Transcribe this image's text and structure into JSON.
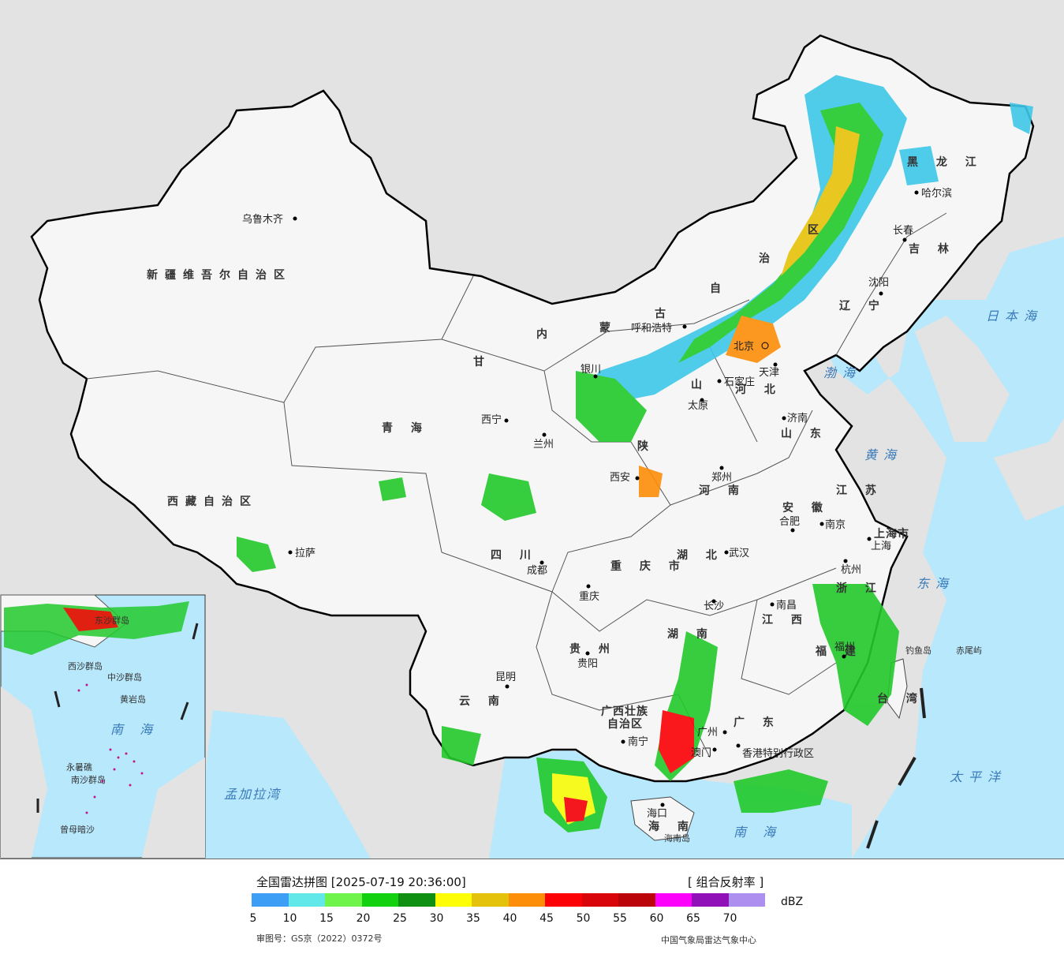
{
  "map": {
    "regions": [
      {
        "id": "xinjiang",
        "text": "新疆维吾尔自治区"
      },
      {
        "id": "xizang",
        "text": "西藏自治区"
      },
      {
        "id": "qinghai",
        "text": "青 海"
      },
      {
        "id": "gansu",
        "text": "甘"
      },
      {
        "id": "sichuan",
        "text": "四 川"
      },
      {
        "id": "yunnan",
        "text": "云 南"
      },
      {
        "id": "guizhou",
        "text": "贵 州"
      },
      {
        "id": "guangxi1",
        "text": "广西壮族"
      },
      {
        "id": "guangxi2",
        "text": "自治区"
      },
      {
        "id": "guangdong",
        "text": "广 东"
      },
      {
        "id": "hunan",
        "text": "湖 南"
      },
      {
        "id": "hubei",
        "text": "湖 北"
      },
      {
        "id": "henan",
        "text": "河 南"
      },
      {
        "id": "shaanxi",
        "text": "陕"
      },
      {
        "id": "shanxi",
        "text": "山"
      },
      {
        "id": "neimeng1",
        "text": "内"
      },
      {
        "id": "neimeng2",
        "text": "蒙"
      },
      {
        "id": "neimeng3",
        "text": "古"
      },
      {
        "id": "neimeng4",
        "text": "自"
      },
      {
        "id": "neimeng5",
        "text": "治"
      },
      {
        "id": "neimeng6",
        "text": "区"
      },
      {
        "id": "heilongjiang",
        "text": "黑 龙 江"
      },
      {
        "id": "jilin",
        "text": "吉 林"
      },
      {
        "id": "liaoning",
        "text": "辽 宁"
      },
      {
        "id": "hebei",
        "text": "河 北"
      },
      {
        "id": "shandong",
        "text": "山 东"
      },
      {
        "id": "jiangsu",
        "text": "江 苏"
      },
      {
        "id": "anhui",
        "text": "安 徽"
      },
      {
        "id": "zhejiang",
        "text": "浙 江"
      },
      {
        "id": "jiangxi",
        "text": "江 西"
      },
      {
        "id": "fujian",
        "text": "福 建"
      },
      {
        "id": "taiwan",
        "text": "台 湾"
      },
      {
        "id": "chongqing",
        "text": "重 庆 市"
      },
      {
        "id": "shanghai",
        "text": "上海市"
      },
      {
        "id": "hainan",
        "text": "海 南"
      }
    ],
    "cities": [
      {
        "id": "urumqi",
        "text": "乌鲁木齐"
      },
      {
        "id": "lhasa",
        "text": "拉萨"
      },
      {
        "id": "xining",
        "text": "西宁"
      },
      {
        "id": "lanzhou",
        "text": "兰州"
      },
      {
        "id": "yinchuan",
        "text": "银川"
      },
      {
        "id": "hohhot",
        "text": "呼和浩特"
      },
      {
        "id": "beijing",
        "text": "北京"
      },
      {
        "id": "tianjin",
        "text": "天津"
      },
      {
        "id": "shijiazhuang",
        "text": "石家庄"
      },
      {
        "id": "taiyuan",
        "text": "太原"
      },
      {
        "id": "jinan",
        "text": "济南"
      },
      {
        "id": "zhengzhou",
        "text": "郑州"
      },
      {
        "id": "xian",
        "text": "西安"
      },
      {
        "id": "chengdu",
        "text": "成都"
      },
      {
        "id": "chongqing_c",
        "text": "重庆"
      },
      {
        "id": "guiyang",
        "text": "贵阳"
      },
      {
        "id": "kunming",
        "text": "昆明"
      },
      {
        "id": "nanning",
        "text": "南宁"
      },
      {
        "id": "guangzhou",
        "text": "广州"
      },
      {
        "id": "haikou",
        "text": "海口"
      },
      {
        "id": "changsha",
        "text": "长沙"
      },
      {
        "id": "wuhan",
        "text": "武汉"
      },
      {
        "id": "nanchang",
        "text": "南昌"
      },
      {
        "id": "fuzhou",
        "text": "福州"
      },
      {
        "id": "hangzhou",
        "text": "杭州"
      },
      {
        "id": "shanghai_c",
        "text": "上海"
      },
      {
        "id": "nanjing",
        "text": "南京"
      },
      {
        "id": "hefei",
        "text": "合肥"
      },
      {
        "id": "shenyang",
        "text": "沈阳"
      },
      {
        "id": "changchun",
        "text": "长春"
      },
      {
        "id": "harbin",
        "text": "哈尔滨"
      },
      {
        "id": "hongkong",
        "text": "香港特别行政区"
      },
      {
        "id": "macao",
        "text": "澳门"
      }
    ],
    "seas": [
      {
        "id": "japan_sea",
        "text": "日本海"
      },
      {
        "id": "bohai",
        "text": "渤海"
      },
      {
        "id": "yellow_sea",
        "text": "黄海"
      },
      {
        "id": "east_sea",
        "text": "东海"
      },
      {
        "id": "pacific",
        "text": "太平洋"
      },
      {
        "id": "south_sea",
        "text": "南 海"
      },
      {
        "id": "bengal",
        "text": "孟加拉湾"
      }
    ],
    "islands": [
      {
        "id": "diaoyu",
        "text": "钓鱼岛"
      },
      {
        "id": "chiwei",
        "text": "赤尾屿"
      },
      {
        "id": "hainan_island",
        "text": "海南岛"
      }
    ],
    "inset": {
      "sea": "南 海",
      "labels": [
        "东沙群岛",
        "西沙群岛",
        "中沙群岛",
        "黄岩岛",
        "永暑礁",
        "南沙群岛",
        "曾母暗沙"
      ]
    }
  },
  "legend": {
    "title": "全国雷达拼图 [2025-07-19 20:36:00]",
    "product": "[ 组合反射率 ]",
    "unit": "dBZ",
    "colors": [
      "#3d9ef5",
      "#63e8ea",
      "#6ef44a",
      "#12d10e",
      "#109012",
      "#fdfd08",
      "#e4c10a",
      "#fd8e08",
      "#fc0106",
      "#d8060b",
      "#bb0408",
      "#fd02fb",
      "#8f11b7",
      "#ad8ff0"
    ],
    "ticks": [
      "5",
      "10",
      "15",
      "20",
      "25",
      "30",
      "35",
      "40",
      "45",
      "50",
      "55",
      "60",
      "65",
      "70"
    ],
    "approval": "审图号：GS京（2022）0372号",
    "credit": "中国气象局雷达气象中心"
  }
}
